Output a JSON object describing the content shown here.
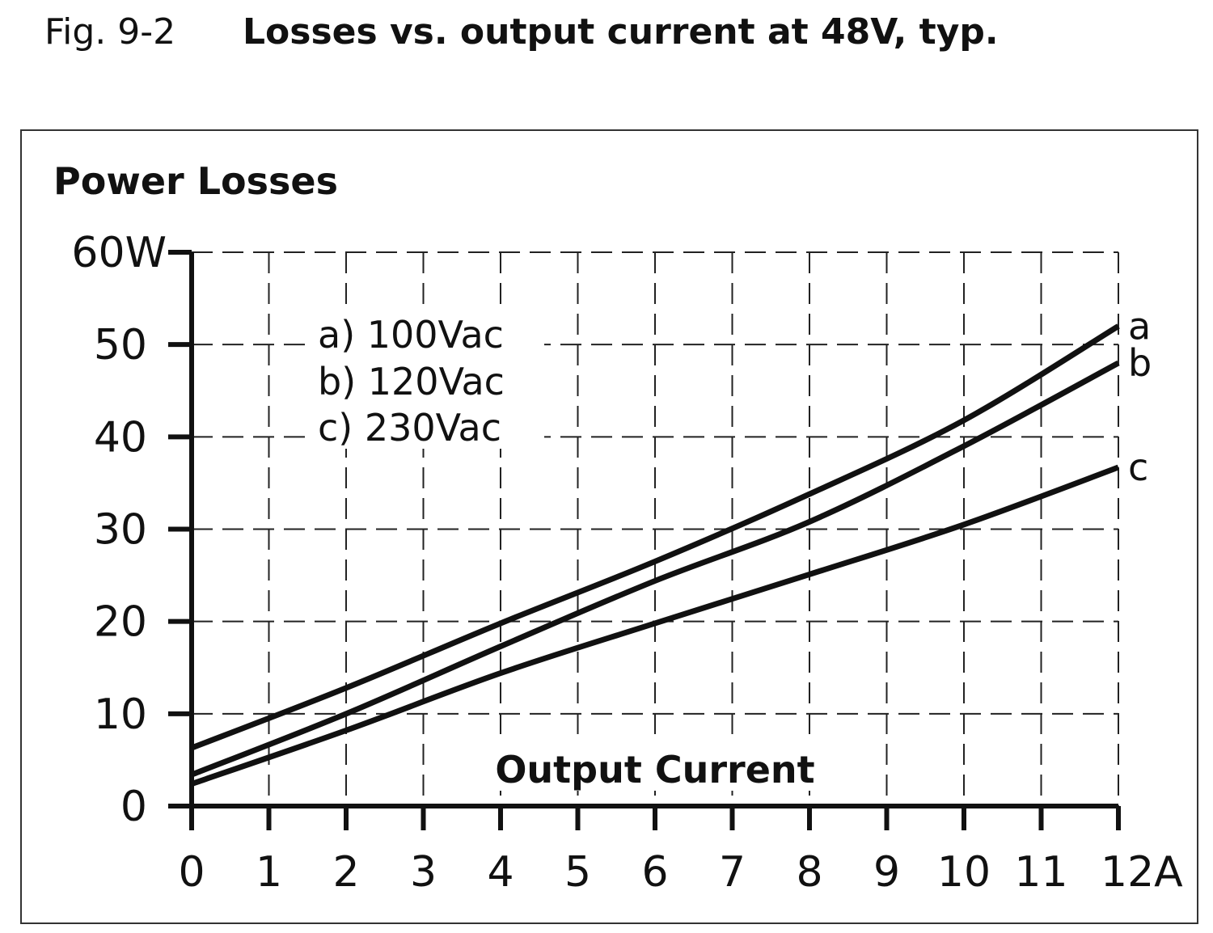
{
  "figure": {
    "label": "Fig. 9-2",
    "title": "Losses vs. output current at 48V, typ."
  },
  "chart_data": {
    "type": "line",
    "title": "Power Losses",
    "xlabel": "Output Current",
    "ylabel": "Power Losses",
    "x_unit": "A",
    "y_unit": "W",
    "xlim": [
      0,
      12
    ],
    "ylim": [
      0,
      60
    ],
    "x_ticks": [
      "0",
      "1",
      "2",
      "3",
      "4",
      "5",
      "6",
      "7",
      "8",
      "9",
      "10",
      "11",
      "12A"
    ],
    "y_ticks": [
      "0",
      "10",
      "20",
      "30",
      "40",
      "50",
      "60W"
    ],
    "grid": true,
    "legend_position": "top-left",
    "legend": [
      "a) 100Vac",
      "b) 120Vac",
      "c) 230Vac"
    ],
    "x": [
      0,
      2,
      4,
      6,
      8,
      10,
      12
    ],
    "series": [
      {
        "name": "a",
        "legend": "a) 100Vac",
        "values": [
          6.3,
          12.8,
          19.8,
          26.5,
          33.8,
          41.8,
          52.0
        ]
      },
      {
        "name": "b",
        "legend": "b) 120Vac",
        "values": [
          3.4,
          10.0,
          17.3,
          24.4,
          30.8,
          39.0,
          48.0
        ]
      },
      {
        "name": "c",
        "legend": "c) 230Vac",
        "values": [
          2.4,
          8.2,
          14.4,
          19.8,
          25.1,
          30.5,
          36.7
        ]
      }
    ],
    "line_color": "#111111"
  }
}
